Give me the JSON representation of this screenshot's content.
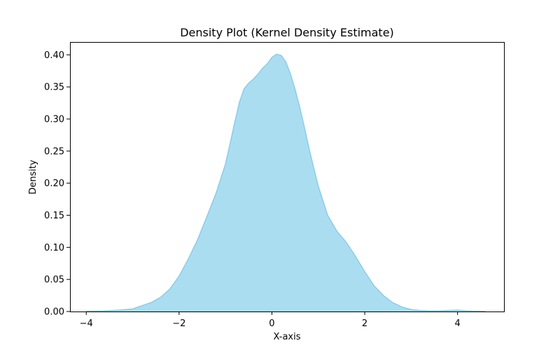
{
  "chart_data": {
    "type": "area",
    "title": "Density Plot (Kernel Density Estimate)",
    "xlabel": "X-axis",
    "ylabel": "Density",
    "xlim": [
      -4.35,
      5.0
    ],
    "ylim": [
      0.0,
      0.42
    ],
    "xticks": [
      -4,
      -2,
      0,
      2,
      4
    ],
    "xtick_labels": [
      "−4",
      "−2",
      "0",
      "2",
      "4"
    ],
    "yticks": [
      0.0,
      0.05,
      0.1,
      0.15,
      0.2,
      0.25,
      0.3,
      0.35,
      0.4
    ],
    "ytick_labels": [
      "0.00",
      "0.05",
      "0.10",
      "0.15",
      "0.20",
      "0.25",
      "0.30",
      "0.35",
      "0.40"
    ],
    "grid": false,
    "legend": "none",
    "fill_color": "#87CEEB",
    "fill_opacity": 0.7,
    "line_color": "#87CEEB",
    "series": [
      {
        "x": [
          -4.0,
          -3.6,
          -3.3,
          -3.0,
          -2.8,
          -2.6,
          -2.4,
          -2.2,
          -2.0,
          -1.8,
          -1.6,
          -1.4,
          -1.2,
          -1.0,
          -0.9,
          -0.8,
          -0.7,
          -0.6,
          -0.5,
          -0.4,
          -0.3,
          -0.2,
          -0.1,
          0.0,
          0.1,
          0.2,
          0.3,
          0.4,
          0.5,
          0.6,
          0.7,
          0.8,
          0.9,
          1.0,
          1.2,
          1.4,
          1.6,
          1.8,
          2.0,
          2.2,
          2.4,
          2.6,
          2.8,
          3.0,
          3.2,
          3.4,
          3.6,
          3.8,
          4.0,
          4.2,
          4.4,
          4.6
        ],
        "y": [
          0.0005,
          0.001,
          0.002,
          0.004,
          0.009,
          0.014,
          0.022,
          0.035,
          0.055,
          0.082,
          0.112,
          0.148,
          0.185,
          0.23,
          0.262,
          0.295,
          0.326,
          0.347,
          0.356,
          0.362,
          0.37,
          0.379,
          0.386,
          0.396,
          0.401,
          0.399,
          0.389,
          0.37,
          0.346,
          0.318,
          0.287,
          0.254,
          0.224,
          0.195,
          0.15,
          0.125,
          0.108,
          0.086,
          0.062,
          0.04,
          0.025,
          0.014,
          0.007,
          0.003,
          0.0015,
          0.001,
          0.001,
          0.0015,
          0.002,
          0.001,
          0.0005,
          0.0002
        ]
      }
    ]
  }
}
